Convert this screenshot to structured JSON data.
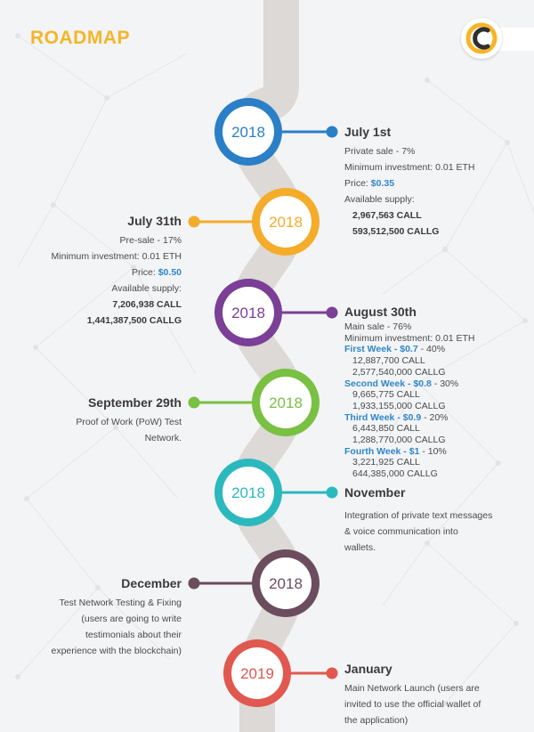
{
  "title": "ROADMAP",
  "colors": {
    "accent": "#f5b528",
    "price": "#2e86c9",
    "road": "#dcd9d6"
  },
  "milestones": [
    {
      "year": "2018",
      "color": "#2a7fc7",
      "date": "July 1st",
      "lines": [
        "Private sale - 7%",
        "Minimum investment: 0.01 ETH"
      ],
      "price_label": "Price:",
      "price": "$0.35",
      "supply_label": "Available supply:",
      "supply": [
        "2,967,563 CALL",
        "593,512,500 CALLG"
      ]
    },
    {
      "year": "2018",
      "color": "#f4ac2a",
      "date": "July 31th",
      "lines": [
        "Pre-sale - 17%",
        "Minimum investment: 0.01 ETH"
      ],
      "price_label": "Price:",
      "price": "$0.50",
      "supply_label": "Available supply:",
      "supply": [
        "7,206,938 CALL",
        "1,441,387,500 CALLG"
      ]
    },
    {
      "year": "2018",
      "color": "#7b3f97",
      "date": "August 30th",
      "lines": [
        "Main sale - 76%",
        "Minimum investment: 0.01 ETH"
      ],
      "weeks": [
        {
          "label": "First Week - $0.7",
          "pct": " - 40%",
          "call": "12,887,700 CALL",
          "callg": "2,577,540,000 CALLG"
        },
        {
          "label": "Second Week - $0.8",
          "pct": " - 30%",
          "call": "9,665,775 CALL",
          "callg": "1,933,155,000 CALLG"
        },
        {
          "label": "Third Week - $0.9",
          "pct": " - 20%",
          "call": "6,443,850 CALL",
          "callg": "1,288,770,000 CALLG"
        },
        {
          "label": "Fourth Week - $1",
          "pct": " - 10%",
          "call": "3,221,925 CALL",
          "callg": "644,385,000 CALLG"
        }
      ]
    },
    {
      "year": "2018",
      "color": "#79c043",
      "date": "September 29th",
      "lines": [
        "Proof of Work (PoW) Test",
        "Network."
      ]
    },
    {
      "year": "2018",
      "color": "#2bb9bd",
      "date": "November",
      "lines": [
        "Integration of private text messages",
        "& voice communication into",
        "wallets."
      ]
    },
    {
      "year": "2018",
      "color": "#6b4d5e",
      "date": "December",
      "lines": [
        "Test Network Testing & Fixing",
        "(users are going to write",
        "testimonials about their",
        "experience with the blockchain)"
      ]
    },
    {
      "year": "2019",
      "color": "#e0584f",
      "date": "January",
      "lines": [
        "Main Network Launch (users are",
        "invited to use the official wallet of",
        "the application)"
      ]
    }
  ]
}
